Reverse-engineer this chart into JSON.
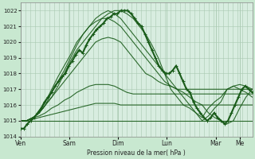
{
  "bg_color": "#c8e8d0",
  "plot_bg_color": "#d8ede0",
  "grid_color": "#a8c8b0",
  "line_color": "#1a5c1a",
  "xlabel": "Pression niveau de la mer( hPa )",
  "ylim": [
    1014,
    1022.5
  ],
  "yticks": [
    1014,
    1015,
    1016,
    1017,
    1018,
    1019,
    1020,
    1021,
    1022
  ],
  "xlim": [
    0,
    228
  ],
  "day_labels": [
    "Ven",
    "Sam",
    "Dim",
    "Lun",
    "Mar",
    "Me"
  ],
  "day_positions": [
    0,
    48,
    96,
    144,
    192,
    216
  ],
  "ensemble_lines": [
    [
      1015.0,
      1015.0,
      1015.2,
      1015.5,
      1016.0,
      1016.5,
      1017.2,
      1018.0,
      1018.8,
      1019.5,
      1020.0,
      1020.5,
      1021.0,
      1021.5,
      1021.8,
      1022.0,
      1022.0,
      1021.8,
      1021.5,
      1021.0,
      1020.5,
      1019.8,
      1019.0,
      1018.0,
      1017.0,
      1016.5,
      1016.0,
      1015.8,
      1015.5,
      1015.2,
      1015.8,
      1016.2,
      1016.5,
      1017.0,
      1017.2,
      1017.3,
      1017.2,
      1017.0
    ],
    [
      1015.0,
      1015.0,
      1015.2,
      1015.5,
      1016.0,
      1016.8,
      1017.5,
      1018.2,
      1019.0,
      1019.8,
      1020.5,
      1021.0,
      1021.5,
      1021.8,
      1022.0,
      1021.8,
      1021.5,
      1021.0,
      1020.5,
      1020.0,
      1019.5,
      1019.0,
      1018.5,
      1018.0,
      1017.5,
      1017.0,
      1016.5,
      1016.0,
      1015.5,
      1015.0,
      1015.3,
      1015.8,
      1016.2,
      1017.0,
      1017.2,
      1017.0,
      1016.8,
      1016.5
    ],
    [
      1015.0,
      1015.0,
      1015.2,
      1015.5,
      1016.2,
      1017.0,
      1017.8,
      1018.5,
      1019.2,
      1020.0,
      1020.5,
      1021.0,
      1021.3,
      1021.5,
      1021.5,
      1021.3,
      1021.0,
      1020.5,
      1020.0,
      1019.5,
      1019.0,
      1018.5,
      1018.0,
      1017.5,
      1017.2,
      1017.0,
      1016.8,
      1016.5,
      1016.2,
      1016.0,
      1015.5,
      1015.2,
      1015.0,
      1014.8,
      1015.0,
      1015.8,
      1016.5,
      1017.0
    ],
    [
      1015.0,
      1015.0,
      1015.2,
      1015.5,
      1016.0,
      1016.5,
      1017.0,
      1017.5,
      1018.0,
      1018.5,
      1019.0,
      1019.5,
      1020.0,
      1020.2,
      1020.3,
      1020.2,
      1020.0,
      1019.5,
      1019.0,
      1018.5,
      1018.0,
      1017.8,
      1017.5,
      1017.3,
      1017.2,
      1017.0,
      1017.0,
      1017.0,
      1017.0,
      1017.0,
      1017.0,
      1017.0,
      1017.0,
      1017.0,
      1017.0,
      1017.0,
      1017.0,
      1017.0
    ],
    [
      1015.0,
      1015.0,
      1015.2,
      1015.3,
      1015.5,
      1015.8,
      1016.0,
      1016.3,
      1016.5,
      1016.8,
      1017.0,
      1017.2,
      1017.3,
      1017.3,
      1017.3,
      1017.2,
      1017.0,
      1016.8,
      1016.7,
      1016.7,
      1016.7,
      1016.7,
      1016.7,
      1016.7,
      1016.7,
      1016.7,
      1016.7,
      1016.7,
      1016.7,
      1016.7,
      1016.7,
      1016.7,
      1016.7,
      1016.7,
      1016.7,
      1016.7,
      1016.7,
      1016.7
    ],
    [
      1015.0,
      1015.0,
      1015.1,
      1015.2,
      1015.3,
      1015.4,
      1015.5,
      1015.6,
      1015.7,
      1015.8,
      1015.9,
      1016.0,
      1016.1,
      1016.1,
      1016.1,
      1016.1,
      1016.0,
      1016.0,
      1016.0,
      1016.0,
      1016.0,
      1016.0,
      1016.0,
      1016.0,
      1016.0,
      1016.0,
      1016.0,
      1016.0,
      1016.0,
      1016.0,
      1016.0,
      1016.0,
      1016.0,
      1016.0,
      1016.0,
      1016.0,
      1016.0,
      1016.0
    ],
    [
      1015.0,
      1015.0,
      1015.0,
      1015.0,
      1015.0,
      1015.0,
      1015.0,
      1015.0,
      1015.0,
      1015.0,
      1015.0,
      1015.0,
      1015.0,
      1015.0,
      1015.0,
      1015.0,
      1015.0,
      1015.0,
      1015.0,
      1015.0,
      1015.0,
      1015.0,
      1015.0,
      1015.0,
      1015.0,
      1015.0,
      1015.0,
      1015.0,
      1015.0,
      1015.0,
      1015.0,
      1015.0,
      1015.0,
      1015.0,
      1015.0,
      1015.0,
      1015.0,
      1015.0
    ]
  ],
  "main_line": [
    1014.5,
    1014.5,
    1014.8,
    1015.0,
    1015.2,
    1015.5,
    1015.8,
    1016.2,
    1016.5,
    1016.8,
    1017.2,
    1017.5,
    1017.8,
    1018.0,
    1018.5,
    1018.8,
    1019.2,
    1019.5,
    1019.3,
    1019.8,
    1020.2,
    1020.5,
    1020.8,
    1021.0,
    1021.2,
    1021.5,
    1021.6,
    1021.8,
    1021.8,
    1022.0,
    1022.0,
    1022.0,
    1021.8,
    1021.5,
    1021.2,
    1021.0,
    1020.5,
    1020.0,
    1019.5,
    1019.0,
    1018.5,
    1018.2,
    1018.0,
    1018.0,
    1018.2,
    1018.5,
    1018.0,
    1017.5,
    1017.0,
    1016.8,
    1016.2,
    1015.8,
    1015.5,
    1015.2,
    1015.0,
    1015.2,
    1015.5,
    1015.2,
    1015.0,
    1014.8,
    1015.0,
    1015.5,
    1016.0,
    1016.5,
    1017.0,
    1017.2,
    1017.0,
    1016.8
  ],
  "lw_ensemble": 0.8,
  "lw_main": 1.5
}
